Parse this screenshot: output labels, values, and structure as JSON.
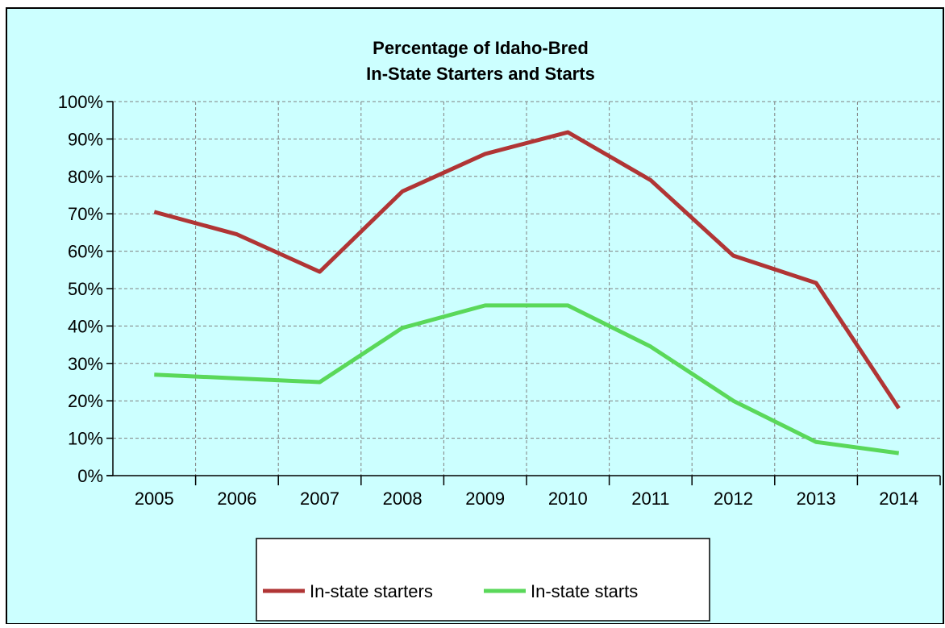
{
  "chart_data": {
    "type": "line",
    "title_line1": "Percentage of Idaho-Bred",
    "title_line2": "In-State Starters and Starts",
    "xlabel": "",
    "ylabel": "",
    "categories": [
      "2005",
      "2006",
      "2007",
      "2008",
      "2009",
      "2010",
      "2011",
      "2012",
      "2013",
      "2014"
    ],
    "yticks": [
      "0%",
      "10%",
      "20%",
      "30%",
      "40%",
      "50%",
      "60%",
      "70%",
      "80%",
      "90%",
      "100%"
    ],
    "ylim": [
      0,
      100
    ],
    "grid": true,
    "legend_position": "bottom-center",
    "colors": {
      "background": "#ccffff",
      "frame": "#000000",
      "grid": "#808080",
      "legend_background": "#ffffff"
    },
    "series": [
      {
        "name": "In-state starters",
        "color": "#b03535",
        "values": [
          70.5,
          64.5,
          54.5,
          76,
          86,
          91.8,
          79,
          58.8,
          51.5,
          18
        ]
      },
      {
        "name": "In-state starts",
        "color": "#5ad85a",
        "values": [
          27,
          26,
          25,
          39.5,
          45.5,
          45.5,
          34.5,
          20,
          9,
          6
        ]
      }
    ]
  }
}
